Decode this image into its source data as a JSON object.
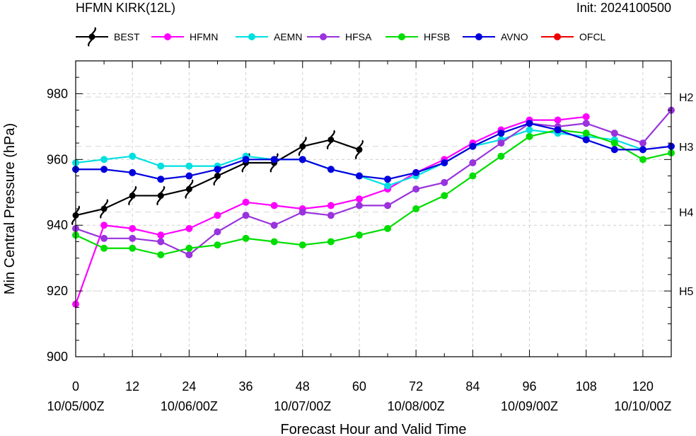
{
  "chart_data": {
    "type": "line",
    "title": "HFMN KIRK(12L)",
    "init_label": "Init: 2024100500",
    "xlabel": "Forecast Hour and Valid Time",
    "ylabel": "Min Central Pressure (hPa)",
    "xlim": [
      0,
      126
    ],
    "ylim": [
      900,
      990
    ],
    "x_ticks": [
      0,
      12,
      24,
      36,
      48,
      60,
      72,
      84,
      96,
      108,
      120
    ],
    "x_tick_labels": [
      "0",
      "12",
      "24",
      "36",
      "48",
      "60",
      "72",
      "84",
      "96",
      "108",
      "120"
    ],
    "date_ticks": [
      0,
      24,
      48,
      72,
      96,
      120
    ],
    "date_labels": [
      "10/05/00Z",
      "10/06/00Z",
      "10/07/00Z",
      "10/08/00Z",
      "10/09/00Z",
      "10/10/00Z"
    ],
    "y_ticks": [
      900,
      920,
      940,
      960,
      980
    ],
    "grid": true,
    "legend_position": "top",
    "intensity_refs": [
      {
        "label": "H2",
        "value": 979
      },
      {
        "label": "H3",
        "value": 964
      },
      {
        "label": "H4",
        "value": 944
      },
      {
        "label": "H5",
        "value": 920
      }
    ],
    "series": [
      {
        "name": "BEST",
        "color": "#000000",
        "marker": "hurricane-symbol",
        "x": [
          0,
          6,
          12,
          18,
          24,
          30,
          36,
          42,
          48,
          54,
          60
        ],
        "y": [
          943,
          945,
          949,
          949,
          951,
          955,
          959,
          959,
          964,
          966,
          963
        ]
      },
      {
        "name": "HFMN",
        "color": "#ff00ff",
        "x": [
          0,
          6,
          12,
          18,
          24,
          30,
          36,
          42,
          48,
          54,
          60,
          66,
          72,
          78,
          84,
          90,
          96,
          102,
          108
        ],
        "y": [
          916,
          940,
          939,
          937,
          939,
          943,
          947,
          946,
          945,
          946,
          948,
          951,
          956,
          960,
          965,
          969,
          972,
          972,
          973
        ]
      },
      {
        "name": "AEMN",
        "color": "#00e0e0",
        "x": [
          0,
          6,
          12,
          18,
          24,
          30,
          36,
          42,
          48,
          54,
          60,
          66,
          72,
          78,
          84,
          90,
          96,
          102,
          108,
          114,
          120
        ],
        "y": [
          959,
          960,
          961,
          958,
          958,
          958,
          961,
          960,
          960,
          957,
          955,
          952,
          955,
          959,
          964,
          966,
          969,
          968,
          967,
          966,
          963
        ]
      },
      {
        "name": "HFSA",
        "color": "#9933dd",
        "x": [
          0,
          6,
          12,
          18,
          24,
          30,
          36,
          42,
          48,
          54,
          60,
          66,
          72,
          78,
          84,
          90,
          96,
          102,
          108,
          114,
          120,
          126
        ],
        "y": [
          939,
          936,
          936,
          935,
          931,
          938,
          943,
          940,
          944,
          943,
          946,
          946,
          951,
          953,
          959,
          965,
          971,
          970,
          971,
          968,
          965,
          975
        ]
      },
      {
        "name": "HFSB",
        "color": "#00dd00",
        "x": [
          0,
          6,
          12,
          18,
          24,
          30,
          36,
          42,
          48,
          54,
          60,
          66,
          72,
          78,
          84,
          90,
          96,
          102,
          108,
          114,
          120,
          126
        ],
        "y": [
          937,
          933,
          933,
          931,
          933,
          934,
          936,
          935,
          934,
          935,
          937,
          939,
          945,
          949,
          955,
          961,
          967,
          969,
          968,
          965,
          960,
          962
        ]
      },
      {
        "name": "AVNO",
        "color": "#0000dd",
        "x": [
          0,
          6,
          12,
          18,
          24,
          30,
          36,
          42,
          48,
          54,
          60,
          66,
          72,
          78,
          84,
          90,
          96,
          102,
          108,
          114,
          120,
          126
        ],
        "y": [
          957,
          957,
          956,
          954,
          955,
          957,
          960,
          960,
          960,
          957,
          955,
          954,
          956,
          959,
          964,
          968,
          971,
          969,
          966,
          963,
          963,
          964
        ]
      },
      {
        "name": "OFCL",
        "color": "#ee0000",
        "x": [],
        "y": []
      }
    ]
  }
}
